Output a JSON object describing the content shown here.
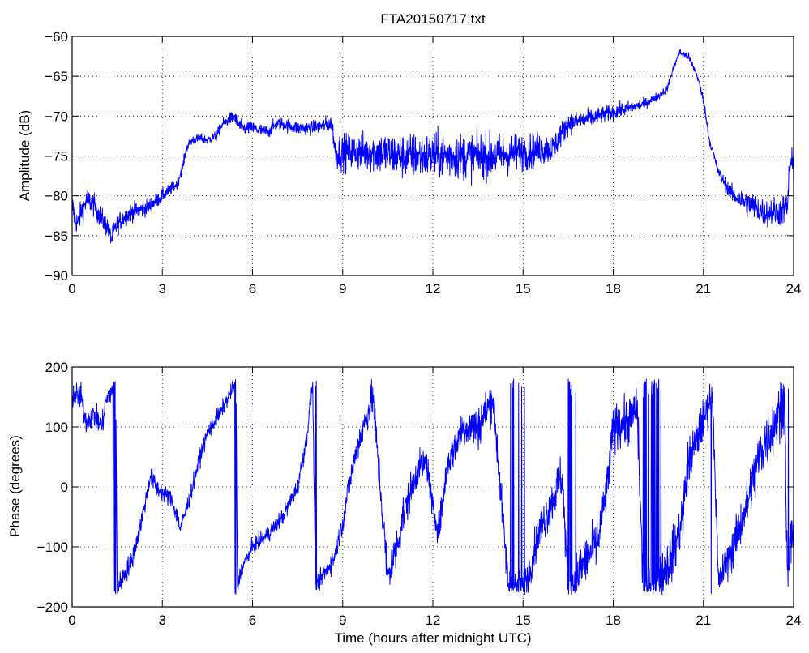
{
  "figure": {
    "title": "FTA20150717.txt"
  },
  "chart_data": [
    {
      "type": "line",
      "title": "FTA20150717.txt",
      "xlabel": "",
      "ylabel": "Amplitude (dB)",
      "xlim": [
        0,
        24
      ],
      "ylim": [
        -90,
        -60
      ],
      "xticks": [
        0,
        3,
        6,
        9,
        12,
        15,
        18,
        21,
        24
      ],
      "yticks": [
        -90,
        -85,
        -80,
        -75,
        -70,
        -65,
        -60
      ],
      "grid": true,
      "color": "#0000ff",
      "noise_band_db": [
        [
          0.0,
          1.5
        ],
        [
          1.5,
          1.2
        ],
        [
          3.0,
          0.8
        ],
        [
          3.6,
          0.6
        ],
        [
          4.5,
          0.5
        ],
        [
          5.5,
          0.8
        ],
        [
          6.5,
          0.8
        ],
        [
          8.0,
          0.8
        ],
        [
          8.65,
          1.0
        ],
        [
          8.75,
          2.0
        ],
        [
          10.5,
          2.6
        ],
        [
          12.0,
          2.8
        ],
        [
          14.0,
          2.6
        ],
        [
          15.5,
          2.0
        ],
        [
          16.3,
          1.5
        ],
        [
          16.5,
          1.2
        ],
        [
          18.0,
          0.9
        ],
        [
          19.0,
          0.6
        ],
        [
          20.0,
          0.4
        ],
        [
          21.5,
          0.6
        ],
        [
          22.0,
          1.0
        ],
        [
          22.5,
          1.6
        ],
        [
          23.8,
          1.8
        ],
        [
          24.0,
          2.0
        ]
      ],
      "series": [
        {
          "x": [
            0.0,
            0.1,
            0.2,
            0.3,
            0.5,
            0.7,
            1.0,
            1.2,
            1.3,
            1.5,
            1.8,
            2.0,
            2.5,
            3.0,
            3.5,
            3.7,
            3.8,
            4.0,
            4.3,
            4.5,
            4.8,
            5.0,
            5.2,
            5.4,
            5.5,
            5.7,
            6.0,
            6.5,
            6.8,
            7.0,
            7.5,
            8.0,
            8.5,
            8.65,
            8.75,
            9.0,
            10.0,
            11.0,
            12.0,
            13.0,
            14.0,
            15.0,
            16.0,
            16.3,
            16.5,
            17.0,
            18.0,
            19.0,
            19.5,
            19.8,
            20.0,
            20.2,
            20.5,
            20.8,
            21.0,
            21.2,
            21.5,
            21.8,
            22.0,
            22.5,
            23.0,
            23.5,
            23.8,
            23.85,
            24.0
          ],
          "y": [
            -81,
            -83,
            -83.5,
            -82,
            -80.5,
            -81,
            -83,
            -84,
            -85.5,
            -83.5,
            -82.5,
            -82,
            -81.5,
            -80,
            -78.5,
            -76,
            -74,
            -73,
            -72.8,
            -73,
            -72.5,
            -71,
            -70.5,
            -70,
            -71,
            -71.5,
            -71.5,
            -72,
            -71,
            -71,
            -71.5,
            -71.5,
            -71,
            -71,
            -74.5,
            -74.5,
            -74.5,
            -75,
            -75,
            -75,
            -75,
            -74.5,
            -74,
            -72,
            -71,
            -70.5,
            -69.5,
            -68.5,
            -67.5,
            -66.5,
            -64,
            -62,
            -62.5,
            -65,
            -68,
            -73,
            -77,
            -79,
            -80,
            -81,
            -82,
            -82,
            -81.5,
            -76.5,
            -76
          ]
        }
      ]
    },
    {
      "type": "line",
      "title": "",
      "xlabel": "Time (hours after midnight UTC)",
      "ylabel": "Phase (degrees)",
      "xlim": [
        0,
        24
      ],
      "ylim": [
        -200,
        200
      ],
      "xticks": [
        0,
        3,
        6,
        9,
        12,
        15,
        18,
        21,
        24
      ],
      "yticks": [
        -200,
        -100,
        0,
        100,
        200
      ],
      "grid": true,
      "color": "#0000ff",
      "wrap": 180,
      "noise_band_deg": [
        [
          0.0,
          22
        ],
        [
          1.4,
          18
        ],
        [
          3.0,
          14
        ],
        [
          5.5,
          12
        ],
        [
          8.0,
          14
        ],
        [
          9.0,
          18
        ],
        [
          10.5,
          35
        ],
        [
          12.0,
          22
        ],
        [
          13.5,
          35
        ],
        [
          15.0,
          25
        ],
        [
          16.5,
          40
        ],
        [
          18.0,
          35
        ],
        [
          19.0,
          40
        ],
        [
          20.5,
          40
        ],
        [
          21.5,
          25
        ],
        [
          22.8,
          45
        ],
        [
          24.0,
          50
        ]
      ],
      "series": [
        {
          "x": [
            0.0,
            0.3,
            0.45,
            0.7,
            1.0,
            1.1,
            1.3,
            1.45,
            1.5,
            1.6,
            1.8,
            2.0,
            2.2,
            2.5,
            2.6,
            2.8,
            3.0,
            3.3,
            3.5,
            3.6,
            3.9,
            4.2,
            4.5,
            5.0,
            5.3,
            5.45,
            5.5,
            5.6,
            5.8,
            6.0,
            6.5,
            7.0,
            7.5,
            7.8,
            8.0,
            8.1,
            8.3,
            8.7,
            9.0,
            9.2,
            9.5,
            10.0,
            10.5,
            10.8,
            11.0,
            11.5,
            11.8,
            12.0,
            12.2,
            12.5,
            13.0,
            13.5,
            14.0,
            14.5,
            15.0,
            15.2,
            15.5,
            16.0,
            16.3,
            16.5,
            16.7,
            17.0,
            17.5,
            17.8,
            18.0,
            18.5,
            18.8,
            19.0,
            19.3,
            19.5,
            20.0,
            20.3,
            20.5,
            21.0,
            21.3,
            21.5,
            22.0,
            22.5,
            22.8,
            23.0,
            23.5,
            23.7,
            23.8,
            23.9,
            24.0
          ],
          "y": [
            150,
            150,
            110,
            120,
            100,
            140,
            160,
            175,
            -170,
            -160,
            -140,
            -120,
            -80,
            -10,
            20,
            0,
            -10,
            -20,
            -50,
            -70,
            -20,
            40,
            90,
            130,
            160,
            175,
            -170,
            -140,
            -120,
            -100,
            -80,
            -50,
            0,
            80,
            175,
            -175,
            -150,
            -120,
            -60,
            0,
            70,
            150,
            -150,
            -100,
            -50,
            30,
            40,
            -40,
            -70,
            40,
            100,
            100,
            150,
            -160,
            -170,
            -140,
            -80,
            -20,
            20,
            -170,
            -160,
            -130,
            -90,
            0,
            100,
            110,
            130,
            -180,
            -170,
            -160,
            -110,
            -50,
            40,
            110,
            160,
            -160,
            -100,
            -20,
            40,
            70,
            120,
            160,
            -180,
            -90,
            -80
          ]
        }
      ]
    }
  ]
}
